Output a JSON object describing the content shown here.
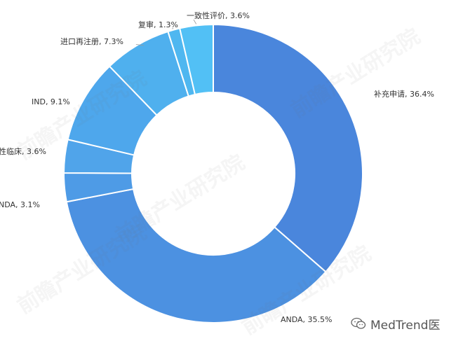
{
  "chart_data": {
    "type": "pie",
    "title": "",
    "slices": [
      {
        "label": "补充申请",
        "value": 36.4,
        "display": "补充申请, 36.4%",
        "color": "#4a86dc"
      },
      {
        "label": "ANDA",
        "value": 35.5,
        "display": "ANDA, 35.5%",
        "color": "#4c91e1"
      },
      {
        "label": "NDA",
        "value": 3.1,
        "display": "NDA, 3.1%",
        "color": "#4e9be6"
      },
      {
        "label": "验证性临床",
        "value": 3.6,
        "display": "性临床, 3.6%",
        "color": "#50a4ea"
      },
      {
        "label": "IND",
        "value": 9.1,
        "display": "IND, 9.1%",
        "color": "#4ea7ec"
      },
      {
        "label": "进口再注册",
        "value": 7.3,
        "display": "进口再注册, 7.3%",
        "color": "#4fb0ee"
      },
      {
        "label": "复审",
        "value": 1.3,
        "display": "复审, 1.3%",
        "color": "#4fb7f0"
      },
      {
        "label": "一致性评价",
        "value": 3.6,
        "display": "一致性评价, 3.6%",
        "color": "#52c0f5"
      }
    ],
    "legend": "none",
    "donut": true
  },
  "watermark": {
    "brand": "前瞻产业研究院",
    "text": "MedTrend医",
    "icon": "wechat-icon"
  }
}
